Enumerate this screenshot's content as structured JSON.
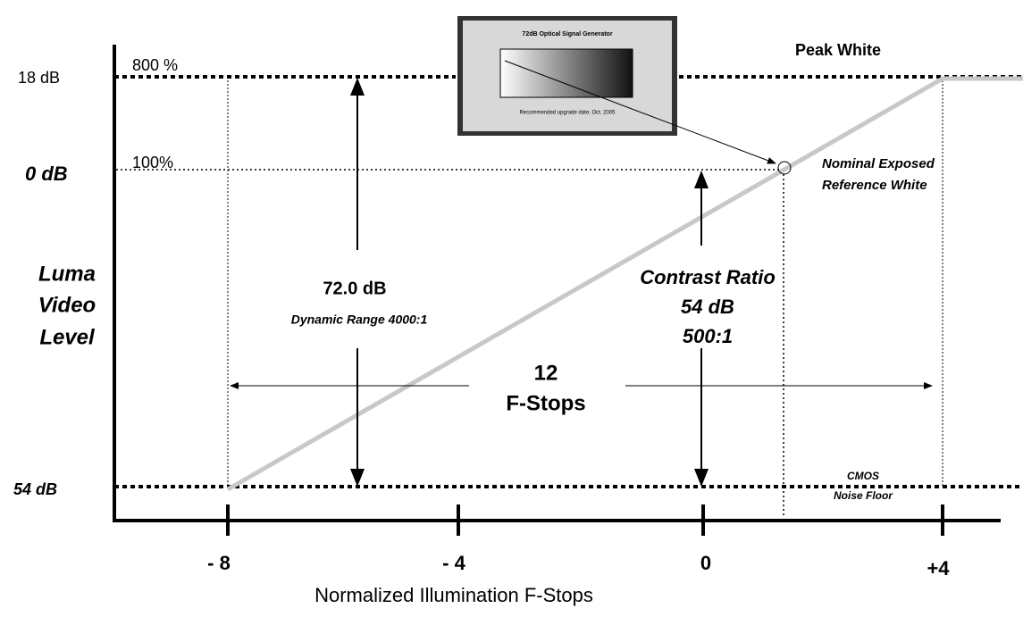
{
  "y_labels": {
    "top": "18 dB",
    "reference": "0 dB",
    "bottom": "54 dB"
  },
  "level_labels": {
    "peak": "800 %",
    "reference": "100%"
  },
  "annotations": {
    "peak_white": "Peak White",
    "reference_white": [
      "Nominal Exposed",
      "Reference White"
    ],
    "noise_floor": [
      "CMOS",
      "Noise Floor"
    ],
    "y_title": [
      "Luma",
      "Video",
      "Level"
    ],
    "dynamic_range": {
      "value": "72.0 dB",
      "label": "Dynamic  Range 4000:1"
    },
    "contrast_ratio": [
      "Contrast Ratio",
      "54 dB",
      "500:1"
    ],
    "f_stops": [
      "12",
      "F-Stops"
    ]
  },
  "x_ticks": [
    "- 8",
    "- 4",
    "0",
    "+4"
  ],
  "x_title": "Normalized Illumination  F-Stops",
  "inset": {
    "title": "72dB Optical Signal Generator",
    "caption": "Recommended upgrade date, Oct. 2005"
  }
}
